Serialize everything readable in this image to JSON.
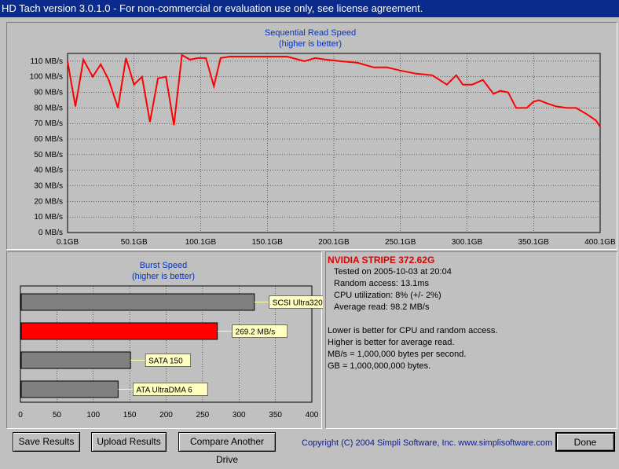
{
  "window": {
    "title": "HD Tach version 3.0.1.0  - For non-commercial or evaluation use only, see license agreement."
  },
  "sequential": {
    "title": "Sequential Read Speed",
    "subtitle": "(higher is better)",
    "y_ticks": [
      "0 MB/s",
      "10 MB/s",
      "20 MB/s",
      "30 MB/s",
      "40 MB/s",
      "50 MB/s",
      "60 MB/s",
      "70 MB/s",
      "80 MB/s",
      "90 MB/s",
      "100 MB/s",
      "110 MB/s"
    ],
    "x_ticks": [
      "0.1GB",
      "50.1GB",
      "100.1GB",
      "150.1GB",
      "200.1GB",
      "250.1GB",
      "300.1GB",
      "350.1GB",
      "400.1GB"
    ],
    "line_color": "#ff0000"
  },
  "burst": {
    "title": "Burst Speed",
    "subtitle": "(higher is better)",
    "x_ticks": [
      "0",
      "50",
      "100",
      "150",
      "200",
      "250",
      "300",
      "350",
      "400"
    ],
    "bars": [
      {
        "label": "SCSI Ultra320",
        "value": 320,
        "color": "#808080"
      },
      {
        "label": "269.2 MB/s",
        "value": 269.2,
        "color": "#ff0000"
      },
      {
        "label": "SATA 150",
        "value": 150,
        "color": "#808080"
      },
      {
        "label": "ATA UltraDMA 6",
        "value": 133,
        "color": "#808080"
      }
    ]
  },
  "info": {
    "drive": "NVIDIA STRIPE  372.62G",
    "tested": "Tested on 2005-10-03 at 20:04",
    "random": "Random access: 13.1ms",
    "cpu": "CPU utilization: 8% (+/- 2%)",
    "average": "Average read: 98.2 MB/s",
    "note1": "Lower is better for CPU and random access.",
    "note2": "Higher is better for average read.",
    "note3": "MB/s = 1,000,000 bytes per second.",
    "note4": "GB = 1,000,000,000 bytes."
  },
  "buttons": {
    "save": "Save Results",
    "upload": "Upload Results",
    "compare": "Compare Another Drive",
    "done": "Done"
  },
  "copyright": "Copyright (C) 2004 Simpli Software, Inc. www.simplisoftware.com",
  "chart_data": [
    {
      "type": "line",
      "title": "Sequential Read Speed",
      "subtitle": "(higher is better)",
      "xlabel": "",
      "ylabel": "",
      "xlim": [
        0.1,
        400.1
      ],
      "ylim": [
        0,
        115
      ],
      "grid": true,
      "series": [
        {
          "x": [
            0.1,
            6,
            12,
            19,
            25,
            31,
            38,
            44,
            50,
            56,
            62,
            68,
            74,
            80,
            86,
            92,
            98,
            104,
            110,
            115,
            122,
            128,
            134,
            145,
            155,
            165,
            178,
            186,
            194,
            205,
            218,
            230,
            240,
            250,
            262,
            274,
            285,
            292,
            297,
            304,
            312,
            320,
            325,
            331,
            337,
            345,
            350,
            354,
            360,
            367,
            375,
            382,
            390,
            397,
            400.1
          ],
          "y": [
            110,
            81,
            111,
            100,
            108,
            98,
            80,
            112,
            95,
            100,
            71,
            99,
            100,
            69,
            114,
            111,
            112,
            112,
            94,
            112,
            113,
            113,
            113,
            113,
            113,
            113,
            110,
            112,
            111,
            110,
            109,
            106,
            106,
            104,
            102,
            101,
            95,
            101,
            95,
            95,
            98,
            89,
            91,
            90,
            80,
            80,
            84,
            85,
            83,
            81,
            80,
            80,
            76,
            72,
            68
          ]
        }
      ]
    },
    {
      "type": "bar",
      "title": "Burst Speed",
      "subtitle": "(higher is better)",
      "orientation": "horizontal",
      "categories": [
        "SCSI Ultra320",
        "269.2 MB/s",
        "SATA 150",
        "ATA UltraDMA 6"
      ],
      "values": [
        320,
        269.2,
        150,
        133
      ],
      "xlim": [
        0,
        400
      ],
      "grid": true
    }
  ]
}
